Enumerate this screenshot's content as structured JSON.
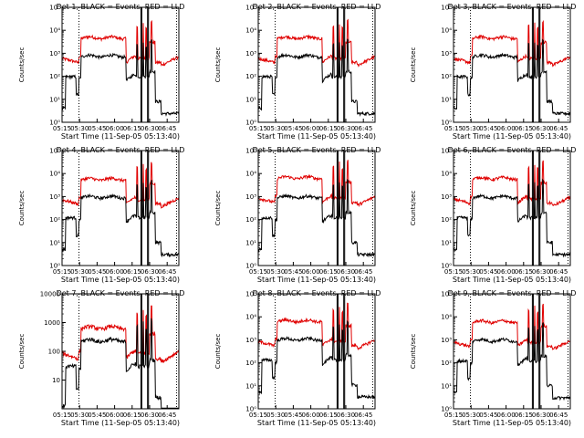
{
  "chart_data": {
    "type": "line",
    "layout": "3x3 grid",
    "yscale": "log",
    "xlabel": "Start Time (11-Sep-05 05:13:40)",
    "ylabel": "Counts/sec",
    "x_tick_labels": [
      "05:15",
      "05:30",
      "05:45",
      "06:00",
      "06:15",
      "06:30",
      "06:45"
    ],
    "x_tick_minutes": [
      0,
      15,
      30,
      45,
      60,
      75,
      90
    ],
    "xlim_minutes": [
      0,
      100
    ],
    "dashed_vlines_minutes": [
      14.5,
      98
    ],
    "solid_vlines_minutes": [
      67.5,
      68.3,
      73.2,
      74.0
    ],
    "series_names": [
      "Events",
      "LLD"
    ],
    "colors": {
      "Events": "#000000",
      "LLD": "#e00000",
      "axes": "#000000"
    },
    "panels": [
      {
        "title": "Det 1, BLACK = Events, RED = LLD",
        "ylim": [
          1,
          100000
        ],
        "y_ticks": [
          1,
          10,
          100,
          1000,
          10000,
          100000
        ],
        "y_tick_labels": [
          "10⁰",
          "10¹",
          "10²",
          "10³",
          "10⁴",
          "10⁵"
        ],
        "events_level": 800,
        "lld_level": 5000,
        "scale": 1.0
      },
      {
        "title": "Det 2, BLACK = Events, RED = LLD",
        "ylim": [
          1,
          100000
        ],
        "y_ticks": [
          1,
          10,
          100,
          1000,
          10000,
          100000
        ],
        "y_tick_labels": [
          "10⁰",
          "10¹",
          "10²",
          "10³",
          "10⁴",
          "10⁵"
        ],
        "events_level": 800,
        "lld_level": 5000,
        "scale": 1.0
      },
      {
        "title": "Det 3, BLACK = Events, RED = LLD",
        "ylim": [
          1,
          100000
        ],
        "y_ticks": [
          1,
          10,
          100,
          1000,
          10000,
          100000
        ],
        "y_tick_labels": [
          "10⁰",
          "10¹",
          "10²",
          "10³",
          "10⁴",
          "10⁵"
        ],
        "events_level": 800,
        "lld_level": 5000,
        "scale": 1.0
      },
      {
        "title": "Det 4, BLACK = Events, RED = LLD",
        "ylim": [
          1,
          100000
        ],
        "y_ticks": [
          1,
          10,
          100,
          1000,
          10000,
          100000
        ],
        "y_tick_labels": [
          "10⁰",
          "10¹",
          "10²",
          "10³",
          "10⁴",
          "10⁵"
        ],
        "events_level": 1000,
        "lld_level": 6000,
        "scale": 1.0
      },
      {
        "title": "Det 5, BLACK = Events, RED = LLD",
        "ylim": [
          1,
          100000
        ],
        "y_ticks": [
          1,
          10,
          100,
          1000,
          10000,
          100000
        ],
        "y_tick_labels": [
          "10⁰",
          "10¹",
          "10²",
          "10³",
          "10⁴",
          "10⁵"
        ],
        "events_level": 1000,
        "lld_level": 7000,
        "scale": 1.0
      },
      {
        "title": "Det 6, BLACK = Events, RED = LLD",
        "ylim": [
          1,
          100000
        ],
        "y_ticks": [
          1,
          10,
          100,
          1000,
          10000,
          100000
        ],
        "y_tick_labels": [
          "10⁰",
          "10¹",
          "10²",
          "10³",
          "10⁴",
          "10⁵"
        ],
        "events_level": 1000,
        "lld_level": 6500,
        "scale": 1.0
      },
      {
        "title": "Det 7, BLACK = Events, RED = LLD",
        "ylim": [
          1,
          10000
        ],
        "y_ticks": [
          10,
          100,
          1000,
          10000
        ],
        "y_tick_labels": [
          "10",
          "100",
          "1000",
          "10000"
        ],
        "events_level": 250,
        "lld_level": 700,
        "scale": 1.0
      },
      {
        "title": "Det 8, BLACK = Events, RED = LLD",
        "ylim": [
          1,
          100000
        ],
        "y_ticks": [
          1,
          10,
          100,
          1000,
          10000,
          100000
        ],
        "y_tick_labels": [
          "10⁰",
          "10¹",
          "10²",
          "10³",
          "10⁴",
          "10⁵"
        ],
        "events_level": 1100,
        "lld_level": 7000,
        "scale": 1.0
      },
      {
        "title": "Det 9, BLACK = Events, RED = LLD",
        "ylim": [
          1,
          100000
        ],
        "y_ticks": [
          1,
          10,
          100,
          1000,
          10000,
          100000
        ],
        "y_tick_labels": [
          "10⁰",
          "10¹",
          "10²",
          "10³",
          "10⁴",
          "10⁵"
        ],
        "events_level": 1000,
        "lld_level": 6500,
        "scale": 1.0
      }
    ]
  }
}
